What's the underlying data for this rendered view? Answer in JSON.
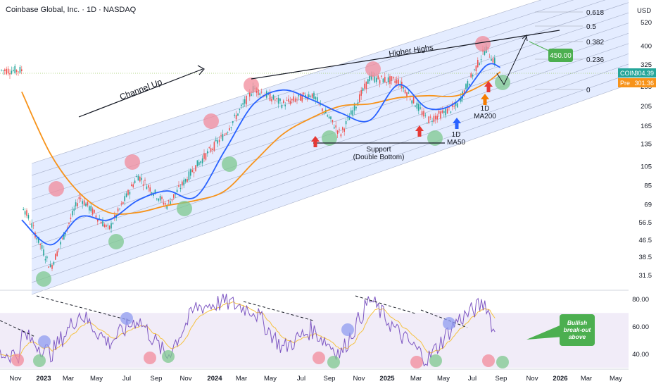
{
  "header": {
    "title": "Coinbase Global, Inc. · 1D · NASDAQ",
    "currency": "USD"
  },
  "colors": {
    "ma50": "#2962ff",
    "ma200": "#f7931a",
    "price_up": "#26a69a",
    "price_down": "#ef5350",
    "channel_fill": "#dbe5ff",
    "rsi_line": "#7e57c2",
    "rsi_ma": "#f5c242",
    "rsi_band": "#ede7f6",
    "green_circle": "#7dc88f",
    "red_circle": "#f28b9b",
    "blue_circle": "#8f9cf0",
    "coin_tag": "#26a69a",
    "pre_tag": "#f7931a",
    "target_box": "#4caf50"
  },
  "chart_data": [
    {
      "type": "line",
      "title": "Coinbase Global, Inc. · 1D · NASDAQ",
      "log_scale": true,
      "ylim": [
        27,
        560
      ],
      "y_ticks": [
        520,
        400,
        325,
        255,
        205,
        165,
        135,
        105,
        85,
        69,
        56.5,
        46.5,
        38.5,
        31.5
      ],
      "x_tick_labels": [
        "Nov",
        "2023",
        "Mar",
        "May",
        "Jul",
        "Sep",
        "Nov",
        "2024",
        "Mar",
        "May",
        "Jul",
        "Sep",
        "Nov",
        "2025",
        "Mar",
        "May",
        "Jul",
        "Sep",
        "Nov",
        "2026",
        "Mar",
        "May"
      ],
      "x": [
        "2022-11",
        "2023-01",
        "2023-03",
        "2023-05",
        "2023-07",
        "2023-09",
        "2023-11",
        "2024-01",
        "2024-03",
        "2024-05",
        "2024-07",
        "2024-09",
        "2024-11",
        "2025-01",
        "2025-03",
        "2025-05",
        "2025-07",
        "2025-08"
      ],
      "series": [
        {
          "name": "price",
          "values": [
            70,
            34,
            75,
            52,
            95,
            68,
            105,
            150,
            250,
            210,
            235,
            150,
            280,
            270,
            175,
            205,
            390,
            305
          ]
        },
        {
          "name": "MA50",
          "values": [
            58,
            44,
            60,
            58,
            72,
            80,
            75,
            125,
            210,
            245,
            220,
            190,
            175,
            260,
            200,
            215,
            320,
            315
          ]
        },
        {
          "name": "MA200",
          "values": [
            240,
            120,
            78,
            63,
            63,
            68,
            72,
            80,
            110,
            150,
            180,
            205,
            210,
            225,
            230,
            230,
            265,
            300
          ]
        }
      ],
      "fib_levels": [
        {
          "label": "0.618",
          "value": 560
        },
        {
          "label": "0.5",
          "value": 475
        },
        {
          "label": "0.382",
          "value": 410
        },
        {
          "label": "0.236",
          "value": 335
        },
        {
          "label": "0",
          "value": 238
        }
      ],
      "price_tags": [
        {
          "label": "COIN",
          "value": "304.39"
        },
        {
          "label": "Pre",
          "value": "301.36"
        }
      ],
      "annotations": {
        "channel": "Channel Up",
        "higher_highs": "Higher Highs",
        "support_line1": "Support",
        "support_line2": "(Double Bottom)",
        "ma50_line1": "1D",
        "ma50_line2": "MA50",
        "ma200_line1": "1D",
        "ma200_line2": "MA200",
        "target": "450.00"
      }
    },
    {
      "type": "line",
      "name": "RSI",
      "ylim": [
        30,
        85
      ],
      "y_ticks": [
        80,
        60,
        40
      ],
      "x": [
        "2022-11",
        "2023-01",
        "2023-03",
        "2023-05",
        "2023-07",
        "2023-09",
        "2023-11",
        "2024-01",
        "2024-03",
        "2024-05",
        "2024-07",
        "2024-09",
        "2024-11",
        "2025-01",
        "2025-03",
        "2025-05",
        "2025-07",
        "2025-08"
      ],
      "series": [
        {
          "name": "RSI",
          "values": [
            55,
            40,
            70,
            48,
            66,
            38,
            74,
            78,
            72,
            44,
            58,
            40,
            80,
            55,
            36,
            64,
            78,
            40
          ]
        }
      ],
      "annotation": {
        "line1": "Bullish",
        "line2": "break-out",
        "line3": "above"
      }
    }
  ]
}
